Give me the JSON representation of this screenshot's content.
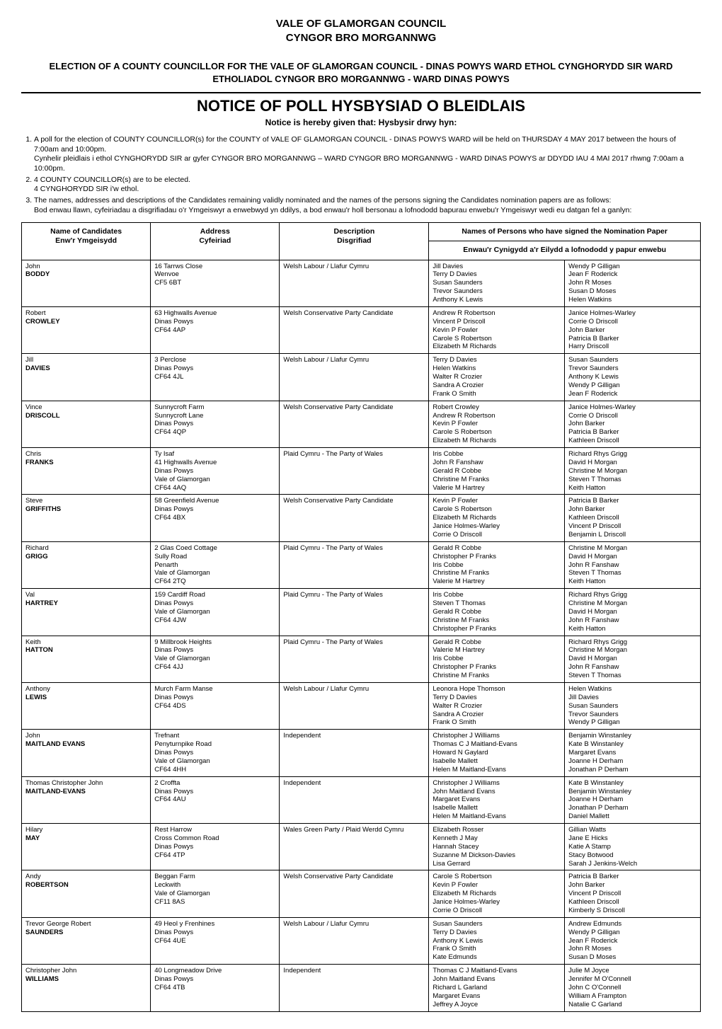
{
  "header": {
    "line1": "VALE OF GLAMORGAN COUNCIL",
    "line2": "CYNGOR BRO MORGANNWG"
  },
  "election": {
    "line1": "ELECTION OF A COUNTY COUNCILLOR FOR THE VALE OF GLAMORGAN COUNCIL - DINAS POWYS WARD",
    "line2": "ETHOL CYNGHORYDD SIR WARD ETHOLIADOL CYNGOR BRO MORGANNWG - WARD DINAS POWYS"
  },
  "notice": {
    "title_en": "NOTICE OF POLL",
    "title_cy": "HYSBYSIAD O BLEIDLAIS",
    "sub_en": "Notice is hereby given that:",
    "sub_cy": "Hysbysir drwy hyn:"
  },
  "paragraphs": {
    "p1a": "A poll for the election of COUNTY COUNCILLOR(s) for the COUNTY of VALE OF GLAMORGAN COUNCIL - DINAS POWYS WARD will be held on THURSDAY 4 MAY 2017 between the hours of 7:00am  and 10:00pm.",
    "p1b": "Cynhelir pleidlais i ethol CYNGHORYDD SIR ar gyfer CYNGOR BRO MORGANNWG – WARD CYNGOR BRO MORGANNWG - WARD DINAS POWYS ar DDYDD IAU 4 MAI 2017 rhwng 7:00am a 10:00pm.",
    "p2a": "4 COUNTY COUNCILLOR(s) are to be elected.",
    "p2b": "4 CYNGHORYDD SIR i'w ethol.",
    "p3a": "The names, addresses and descriptions of the Candidates remaining validly nominated and the names of the persons signing the Candidates nomination papers are as follows:",
    "p3b": "Bod enwau llawn, cyfeiriadau a disgrifiadau o'r Ymgeiswyr a enwebwyd yn ddilys, a bod enwau'r holl bersonau a lofnododd bapurau enwebu'r Ymgeiswyr wedi eu datgan fel a ganlyn:"
  },
  "table": {
    "headers": {
      "name": "Name of Candidates",
      "name_cy": "Enw'r Ymgeisydd",
      "address": "Address",
      "address_cy": "Cyfeiriad",
      "description": "Description",
      "description_cy": "Disgrifiad",
      "signers": "Names of Persons who have signed the Nomination Paper",
      "signers_cy": "Enwau'r Cynigydd a'r Eilydd a lofnododd y papur enwebu"
    },
    "rows": [
      {
        "first": "John",
        "last": "BODDY",
        "address": [
          "16 Tarrws Close",
          "Wenvoe",
          "CF5 6BT"
        ],
        "description": "Welsh Labour / Llafur Cymru",
        "signers_left": [
          "Jill Davies",
          "Terry D Davies",
          "Susan Saunders",
          "Trevor Saunders",
          "Anthony K Lewis"
        ],
        "signers_right": [
          "Wendy P Gilligan",
          "Jean F Roderick",
          "John R Moses",
          "Susan D Moses",
          "Helen Watkins"
        ]
      },
      {
        "first": "Robert",
        "last": "CROWLEY",
        "address": [
          "63 Highwalls Avenue",
          "Dinas Powys",
          "CF64 4AP"
        ],
        "description": "Welsh Conservative Party Candidate",
        "signers_left": [
          "Andrew R Robertson",
          "Vincent P Driscoll",
          "Kevin P Fowler",
          "Carole S Robertson",
          "Elizabeth M Richards"
        ],
        "signers_right": [
          "Janice Holmes-Warley",
          "Corrie O Driscoll",
          "John Barker",
          "Patricia B Barker",
          "Harry Driscoll"
        ]
      },
      {
        "first": "Jill",
        "last": "DAVIES",
        "address": [
          "3 Perclose",
          "Dinas Powys",
          "CF64 4JL"
        ],
        "description": "Welsh Labour / Llafur Cymru",
        "signers_left": [
          "Terry D Davies",
          "Helen Watkins",
          "Walter R Crozier",
          "Sandra A Crozier",
          "Frank O Smith"
        ],
        "signers_right": [
          "Susan Saunders",
          "Trevor Saunders",
          "Anthony K Lewis",
          "Wendy P Gilligan",
          "Jean F Roderick"
        ]
      },
      {
        "first": "Vince",
        "last": "DRISCOLL",
        "address": [
          "Sunnycroft Farm",
          "Sunnycroft Lane",
          "Dinas Powys",
          "CF64 4QP"
        ],
        "description": "Welsh Conservative Party Candidate",
        "signers_left": [
          "Robert Crowley",
          "Andrew R Robertson",
          "Kevin P Fowler",
          "Carole S Robertson",
          "Elizabeth M Richards"
        ],
        "signers_right": [
          "Janice Holmes-Warley",
          "Corrie O Driscoll",
          "John Barker",
          "Patricia B Barker",
          "Kathleen Driscoll"
        ]
      },
      {
        "first": "Chris",
        "last": "FRANKS",
        "address": [
          "Ty Isaf",
          "41 Highwalls Avenue",
          "Dinas Powys",
          "Vale of Glamorgan",
          "CF64 4AQ"
        ],
        "description": "Plaid Cymru - The Party of Wales",
        "signers_left": [
          "Iris Cobbe",
          "John R Fanshaw",
          "Gerald R Cobbe",
          "Christine M Franks",
          "Valerie M Hartrey"
        ],
        "signers_right": [
          "Richard Rhys Grigg",
          "David H Morgan",
          "Christine M Morgan",
          "Steven T Thomas",
          "Keith Hatton"
        ]
      },
      {
        "first": "Steve",
        "last": "GRIFFITHS",
        "address": [
          "58 Greenfield Avenue",
          "Dinas Powys",
          "CF64 4BX"
        ],
        "description": "Welsh Conservative Party Candidate",
        "signers_left": [
          "Kevin P Fowler",
          "Carole S Robertson",
          "Elizabeth M Richards",
          "Janice Holmes-Warley",
          "Corrie O Driscoll"
        ],
        "signers_right": [
          "Patricia B Barker",
          "John Barker",
          "Kathleen Driscoll",
          "Vincent P Driscoll",
          "Benjamin L Driscoll"
        ]
      },
      {
        "first": "Richard",
        "last": "GRIGG",
        "address": [
          "2 Glas Coed Cottage",
          "Sully Road",
          "Penarth",
          "Vale of Glamorgan",
          "CF64 2TQ"
        ],
        "description": "Plaid Cymru - The Party of Wales",
        "signers_left": [
          "Gerald R Cobbe",
          "Christopher P Franks",
          "Iris Cobbe",
          "Christine M Franks",
          "Valerie M Hartrey"
        ],
        "signers_right": [
          "Christine M Morgan",
          "David H Morgan",
          "John R Fanshaw",
          "Steven T Thomas",
          "Keith Hatton"
        ]
      },
      {
        "first": "Val",
        "last": "HARTREY",
        "address": [
          "159 Cardiff Road",
          "Dinas Powys",
          "Vale of Glamorgan",
          "CF64 4JW"
        ],
        "description": "Plaid Cymru - The Party of Wales",
        "signers_left": [
          "Iris Cobbe",
          "Steven T Thomas",
          "Gerald R Cobbe",
          "Christine M Franks",
          "Christopher P Franks"
        ],
        "signers_right": [
          "Richard Rhys Grigg",
          "Christine M Morgan",
          "David H Morgan",
          "John R Fanshaw",
          "Keith Hatton"
        ]
      },
      {
        "first": "Keith",
        "last": "HATTON",
        "address": [
          "9 Millbrook Heights",
          "Dinas Powys",
          "Vale of Glamorgan",
          "CF64 4JJ"
        ],
        "description": "Plaid Cymru - The Party of Wales",
        "signers_left": [
          "Gerald R Cobbe",
          "Valerie M Hartrey",
          "Iris Cobbe",
          "Christopher P Franks",
          "Christine M Franks"
        ],
        "signers_right": [
          "Richard Rhys Grigg",
          "Christine M Morgan",
          "David H Morgan",
          "John R Fanshaw",
          "Steven T Thomas"
        ]
      },
      {
        "first": "Anthony",
        "last": "LEWIS",
        "address": [
          "Murch Farm Manse",
          "Dinas Powys",
          "CF64 4DS"
        ],
        "description": "Welsh Labour / Llafur Cymru",
        "signers_left": [
          "Leonora Hope Thomson",
          "Terry D Davies",
          "Walter R Crozier",
          "Sandra A Crozier",
          "Frank O Smith"
        ],
        "signers_right": [
          "Helen Watkins",
          "Jill Davies",
          "Susan Saunders",
          "Trevor Saunders",
          "Wendy P Gilligan"
        ]
      },
      {
        "first": "John",
        "last": "MAITLAND EVANS",
        "address": [
          "Trefnant",
          "Penyturnpike Road",
          "Dinas Powys",
          "Vale of Glamorgan",
          "CF64 4HH"
        ],
        "description": "Independent",
        "signers_left": [
          "Christopher J Williams",
          "Thomas C J Maitland-Evans",
          "Howard N Gaylard",
          "Isabelle Mallett",
          "Helen M Maitland-Evans"
        ],
        "signers_right": [
          "Benjamin Winstanley",
          "Kate B Winstanley",
          "Margaret Evans",
          "Joanne H Derham",
          "Jonathan P Derham"
        ]
      },
      {
        "first": "Thomas Christopher John",
        "last": "MAITLAND-EVANS",
        "address": [
          "2 Croffta",
          "Dinas Powys",
          "CF64 4AU"
        ],
        "description": "Independent",
        "signers_left": [
          "Christopher J Williams",
          "John Maitland Evans",
          "Margaret Evans",
          "Isabelle Mallett",
          "Helen M Maitland-Evans"
        ],
        "signers_right": [
          "Kate B Winstanley",
          "Benjamin Winstanley",
          "Joanne H Derham",
          "Jonathan P Derham",
          "Daniel Mallett"
        ]
      },
      {
        "first": "Hilary",
        "last": "MAY",
        "address": [
          "Rest Harrow",
          "Cross Common Road",
          "Dinas Powys",
          "CF64 4TP"
        ],
        "description": "Wales Green Party / Plaid Werdd Cymru",
        "signers_left": [
          "Elizabeth Rosser",
          "Kenneth J May",
          "Hannah Stacey",
          "Suzanne M Dickson-Davies",
          "Lisa Gerrard"
        ],
        "signers_right": [
          "Gillian Watts",
          "Jane E Hicks",
          "Katie A Stamp",
          "Stacy Botwood",
          "Sarah J Jenkins-Welch"
        ]
      },
      {
        "first": "Andy",
        "last": "ROBERTSON",
        "address": [
          "Beggan Farm",
          "Leckwith",
          "Vale of Glamorgan",
          "CF11 8AS"
        ],
        "description": "Welsh Conservative Party Candidate",
        "signers_left": [
          "Carole S Robertson",
          "Kevin P Fowler",
          "Elizabeth M Richards",
          "Janice Holmes-Warley",
          "Corrie O Driscoll"
        ],
        "signers_right": [
          "Patricia B Barker",
          "John Barker",
          "Vincent P Driscoll",
          "Kathleen Driscoll",
          "Kimberly S Driscoll"
        ]
      },
      {
        "first": "Trevor George Robert",
        "last": "SAUNDERS",
        "address": [
          "49 Heol y Frenhines",
          "Dinas Powys",
          "CF64 4UE"
        ],
        "description": "Welsh Labour / Llafur Cymru",
        "signers_left": [
          "Susan Saunders",
          "Terry D Davies",
          "Anthony K Lewis",
          "Frank O Smith",
          "Kate Edmunds"
        ],
        "signers_right": [
          "Andrew Edmunds",
          "Wendy P Gilligan",
          "Jean F Roderick",
          "John R Moses",
          "Susan D Moses"
        ]
      },
      {
        "first": "Christopher John",
        "last": "WILLIAMS",
        "address": [
          "40 Longmeadow Drive",
          "Dinas Powys",
          "CF64 4TB"
        ],
        "description": "Independent",
        "signers_left": [
          "Thomas C J Maitland-Evans",
          "John Maitland Evans",
          "Richard L Garland",
          "Margaret Evans",
          "Jeffrey A Joyce"
        ],
        "signers_right": [
          "Julie M Joyce",
          "Jennifer M O'Connell",
          "John C O'Connell",
          "William A Frampton",
          "Natalie C Garland"
        ]
      }
    ]
  },
  "style": {
    "text_color": "#000000",
    "background_color": "#ffffff",
    "border_color": "#000000",
    "font_family": "Arial, Helvetica, sans-serif",
    "header_fontsize_pt": 15,
    "election_fontsize_pt": 13,
    "notice_title_fontsize_pt": 22,
    "table_header_fontsize_pt": 10.5,
    "table_body_fontsize_pt": 9.5
  }
}
